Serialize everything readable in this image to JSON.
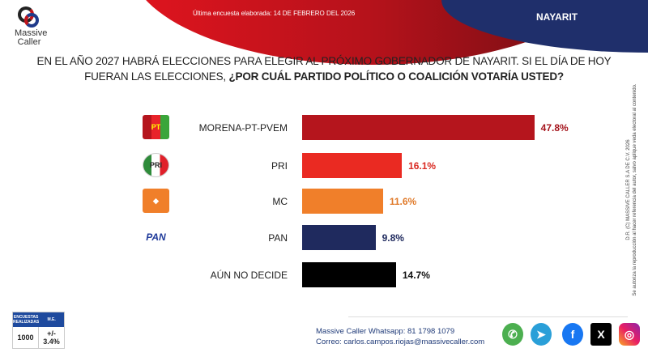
{
  "header": {
    "date_text": "Última encuesta elaborada: 14 DE FEBRERO DEL 2026",
    "state": "NAYARIT",
    "logo_text": [
      "Massive",
      "Caller"
    ]
  },
  "question": {
    "line1": "EN EL AÑO 2027 HABRÁ ELECCIONES PARA ELEGIR AL PRÓXIMO GOBERNADOR DE NAYARIT. SI EL DÍA DE HOY",
    "line2_plain": "FUERAN LAS ELECCIONES, ",
    "line2_bold": "¿POR CUÁL PARTIDO POLÍTICO O COALICIÓN VOTARÍA USTED?"
  },
  "chart_data": {
    "type": "bar",
    "orientation": "horizontal",
    "categories": [
      "MORENA-PT-PVEM",
      "PRI",
      "MC",
      "PAN",
      "AÚN NO DECIDE"
    ],
    "values": [
      47.8,
      16.1,
      11.6,
      9.8,
      14.7
    ],
    "value_labels": [
      "47.8%",
      "16.1%",
      "11.6%",
      "9.8%",
      "14.7%"
    ],
    "colors": [
      "#b5151d",
      "#ea2a22",
      "#f07f2a",
      "#1f2a5e",
      "#000000"
    ],
    "label_colors": [
      "#a5151d",
      "#d92a22",
      "#e07a2a",
      "#1f2a5e",
      "#111111"
    ],
    "icons": [
      "morena-pt-pvem-logo",
      "pri-logo",
      "mc-logo",
      "pan-logo",
      ""
    ],
    "grid": false
  },
  "side_note": {
    "line1": "D.R. (C) MASSIVE CALLER S.A DE C.V. 2026",
    "line2": "Se autoriza la reproducción al hacer referencia del autor, salvo aplique veda electoral al contenido."
  },
  "stats": {
    "h1": "ENCUESTAS REALIZADAS",
    "h2": "M.E.",
    "count": "1000",
    "me": "+/- 3.4%"
  },
  "contact": {
    "whatsapp": "Massive Caller Whatsapp: 81 1798 1079",
    "email": "Correo: carlos.campos.riojas@massivecaller.com"
  },
  "social": [
    "whatsapp-icon",
    "telegram-icon",
    "facebook-icon",
    "x-icon",
    "instagram-icon"
  ]
}
